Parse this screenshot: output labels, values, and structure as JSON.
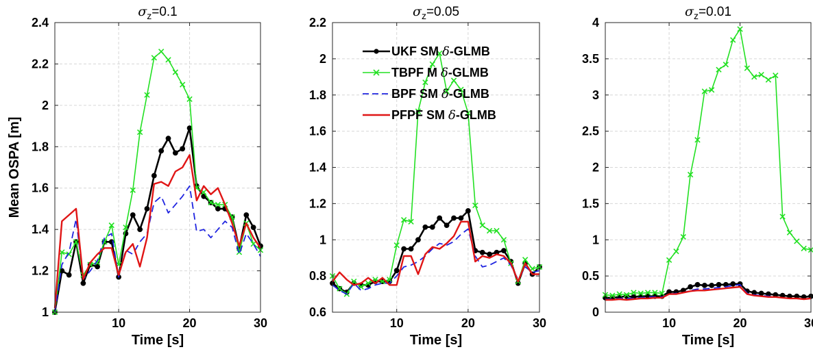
{
  "chart_data": [
    {
      "type": "line",
      "title": {
        "symbol": "σ",
        "sub": "z",
        "value": "=0.1"
      },
      "xlabel": "Time [s]",
      "ylabel": "Mean OSPA [m]",
      "xlim": [
        1,
        30
      ],
      "ylim": [
        1,
        2.4
      ],
      "xticks": [
        10,
        20,
        30
      ],
      "yticks": [
        1,
        1.2,
        1.4,
        1.6,
        1.8,
        2,
        2.2,
        2.4
      ],
      "ytick_labels": [
        "1",
        "1.2",
        "1.4",
        "1.6",
        "1.8",
        "2",
        "2.2",
        "2.4"
      ],
      "grid": true,
      "x": [
        1,
        2,
        3,
        4,
        5,
        6,
        7,
        8,
        9,
        10,
        11,
        12,
        13,
        14,
        15,
        16,
        17,
        18,
        19,
        20,
        21,
        22,
        23,
        24,
        25,
        26,
        27,
        28,
        29,
        30
      ],
      "series": [
        {
          "key": "ukf",
          "values": [
            1.0,
            1.2,
            1.18,
            1.34,
            1.14,
            1.23,
            1.22,
            1.34,
            1.34,
            1.17,
            1.38,
            1.47,
            1.4,
            1.5,
            1.66,
            1.78,
            1.84,
            1.77,
            1.79,
            1.89,
            1.61,
            1.56,
            1.53,
            1.5,
            1.5,
            1.46,
            1.31,
            1.47,
            1.41,
            1.32
          ]
        },
        {
          "key": "tbpf",
          "values": [
            1.0,
            1.29,
            1.28,
            1.34,
            1.18,
            1.23,
            1.24,
            1.34,
            1.42,
            1.23,
            1.41,
            1.59,
            1.87,
            2.05,
            2.23,
            2.26,
            2.22,
            2.16,
            2.1,
            2.03,
            1.6,
            1.58,
            1.53,
            1.52,
            1.52,
            1.46,
            1.29,
            1.43,
            1.33,
            1.3
          ]
        },
        {
          "key": "bpf",
          "values": [
            1.0,
            1.23,
            1.29,
            1.45,
            1.16,
            1.2,
            1.25,
            1.36,
            1.38,
            1.17,
            1.3,
            1.28,
            1.34,
            1.38,
            1.53,
            1.56,
            1.48,
            1.52,
            1.56,
            1.61,
            1.39,
            1.4,
            1.36,
            1.4,
            1.44,
            1.41,
            1.28,
            1.38,
            1.33,
            1.27
          ]
        },
        {
          "key": "pfpf",
          "values": [
            1.02,
            1.44,
            1.47,
            1.5,
            1.16,
            1.24,
            1.28,
            1.31,
            1.31,
            1.18,
            1.29,
            1.33,
            1.22,
            1.36,
            1.62,
            1.63,
            1.61,
            1.68,
            1.7,
            1.76,
            1.54,
            1.61,
            1.57,
            1.6,
            1.52,
            1.43,
            1.32,
            1.43,
            1.36,
            1.31
          ]
        }
      ]
    },
    {
      "type": "line",
      "title": {
        "symbol": "σ",
        "sub": "z",
        "value": "=0.05"
      },
      "xlabel": "Time [s]",
      "ylabel": "",
      "xlim": [
        1,
        30
      ],
      "ylim": [
        0.6,
        2.2
      ],
      "xticks": [
        10,
        20,
        30
      ],
      "yticks": [
        0.6,
        0.8,
        1,
        1.2,
        1.4,
        1.6,
        1.8,
        2,
        2.2
      ],
      "ytick_labels": [
        "0.6",
        "0.8",
        "1",
        "1.2",
        "1.4",
        "1.6",
        "1.8",
        "2",
        "2.2"
      ],
      "grid": true,
      "x": [
        1,
        2,
        3,
        4,
        5,
        6,
        7,
        8,
        9,
        10,
        11,
        12,
        13,
        14,
        15,
        16,
        17,
        18,
        19,
        20,
        21,
        22,
        23,
        24,
        25,
        26,
        27,
        28,
        29,
        30
      ],
      "series": [
        {
          "key": "ukf",
          "values": [
            0.76,
            0.73,
            0.71,
            0.76,
            0.75,
            0.75,
            0.77,
            0.77,
            0.77,
            0.83,
            0.95,
            0.95,
            1.0,
            1.07,
            1.07,
            1.12,
            1.08,
            1.12,
            1.12,
            1.16,
            0.94,
            0.93,
            0.92,
            0.93,
            0.94,
            0.88,
            0.76,
            0.87,
            0.81,
            0.85
          ]
        },
        {
          "key": "tbpf",
          "values": [
            0.8,
            0.73,
            0.7,
            0.77,
            0.74,
            0.76,
            0.78,
            0.77,
            0.78,
            0.97,
            1.11,
            1.1,
            1.71,
            1.87,
            1.97,
            2.03,
            1.82,
            1.88,
            1.83,
            1.7,
            1.19,
            1.08,
            1.05,
            1.05,
            1.0,
            0.87,
            0.77,
            0.89,
            0.84,
            0.85
          ]
        },
        {
          "key": "bpf",
          "values": [
            0.75,
            0.72,
            0.7,
            0.76,
            0.72,
            0.73,
            0.75,
            0.76,
            0.76,
            0.8,
            0.85,
            0.86,
            0.88,
            0.91,
            0.95,
            0.98,
            0.97,
            0.99,
            1.03,
            1.06,
            0.91,
            0.85,
            0.86,
            0.88,
            0.9,
            0.86,
            0.78,
            0.85,
            0.82,
            0.83
          ]
        },
        {
          "key": "pfpf",
          "values": [
            0.77,
            0.82,
            0.78,
            0.75,
            0.76,
            0.79,
            0.76,
            0.79,
            0.75,
            0.75,
            0.91,
            0.91,
            0.81,
            0.92,
            0.96,
            0.95,
            0.98,
            1.02,
            1.1,
            1.1,
            0.88,
            0.91,
            0.9,
            0.92,
            0.91,
            0.87,
            0.77,
            0.87,
            0.81,
            0.81
          ]
        }
      ]
    },
    {
      "type": "line",
      "title": {
        "symbol": "σ",
        "sub": "z",
        "value": "=0.01"
      },
      "xlabel": "Time [s]",
      "ylabel": "",
      "xlim": [
        1,
        30
      ],
      "ylim": [
        0,
        4
      ],
      "xticks": [
        10,
        20,
        30
      ],
      "yticks": [
        0,
        0.5,
        1,
        1.5,
        2,
        2.5,
        3,
        3.5,
        4
      ],
      "ytick_labels": [
        "0",
        "0.5",
        "1",
        "1.5",
        "2",
        "2.5",
        "3",
        "3.5",
        "4"
      ],
      "grid": true,
      "x": [
        1,
        2,
        3,
        4,
        5,
        6,
        7,
        8,
        9,
        10,
        11,
        12,
        13,
        14,
        15,
        16,
        17,
        18,
        19,
        20,
        21,
        22,
        23,
        24,
        25,
        26,
        27,
        28,
        29,
        30
      ],
      "series": [
        {
          "key": "ukf",
          "values": [
            0.2,
            0.2,
            0.21,
            0.22,
            0.21,
            0.22,
            0.22,
            0.22,
            0.22,
            0.28,
            0.28,
            0.3,
            0.35,
            0.38,
            0.37,
            0.37,
            0.38,
            0.38,
            0.39,
            0.39,
            0.29,
            0.27,
            0.26,
            0.25,
            0.24,
            0.23,
            0.22,
            0.22,
            0.21,
            0.22
          ]
        },
        {
          "key": "tbpf",
          "values": [
            0.24,
            0.23,
            0.25,
            0.24,
            0.27,
            0.26,
            0.27,
            0.27,
            0.26,
            0.72,
            0.84,
            1.04,
            1.9,
            2.38,
            3.05,
            3.07,
            3.35,
            3.42,
            3.76,
            3.91,
            3.37,
            3.25,
            3.28,
            3.21,
            3.27,
            1.32,
            1.1,
            0.98,
            0.88,
            0.86
          ]
        },
        {
          "key": "bpf",
          "values": [
            0.18,
            0.18,
            0.19,
            0.19,
            0.19,
            0.2,
            0.21,
            0.21,
            0.21,
            0.25,
            0.26,
            0.27,
            0.3,
            0.32,
            0.32,
            0.33,
            0.34,
            0.35,
            0.37,
            0.38,
            0.26,
            0.24,
            0.23,
            0.22,
            0.21,
            0.2,
            0.19,
            0.19,
            0.18,
            0.19
          ]
        },
        {
          "key": "pfpf",
          "values": [
            0.17,
            0.17,
            0.18,
            0.17,
            0.18,
            0.19,
            0.19,
            0.2,
            0.2,
            0.25,
            0.25,
            0.27,
            0.29,
            0.3,
            0.3,
            0.31,
            0.32,
            0.33,
            0.34,
            0.35,
            0.25,
            0.23,
            0.22,
            0.21,
            0.21,
            0.2,
            0.19,
            0.19,
            0.18,
            0.19
          ]
        }
      ]
    }
  ],
  "legend": {
    "placement": "top-left",
    "entries": [
      {
        "key": "ukf",
        "label": "UKF SM ",
        "suffix": "-GLMB"
      },
      {
        "key": "tbpf",
        "label": "TBPF M ",
        "suffix": "-GLMB"
      },
      {
        "key": "bpf",
        "label": "BPF SM ",
        "suffix": "-GLMB"
      },
      {
        "key": "pfpf",
        "label": "PFPF SM ",
        "suffix": "-GLMB"
      }
    ],
    "delta_symbol": "δ"
  },
  "styles": {
    "ukf": {
      "color": "#000000",
      "dash": "",
      "marker": "circle",
      "width": 2.6
    },
    "tbpf": {
      "color": "#22e022",
      "dash": "",
      "marker": "x",
      "width": 1.6
    },
    "bpf": {
      "color": "#1f24e0",
      "dash": "10 6",
      "marker": "none",
      "width": 1.8
    },
    "pfpf": {
      "color": "#e01515",
      "dash": "",
      "marker": "none",
      "width": 2.4
    }
  }
}
